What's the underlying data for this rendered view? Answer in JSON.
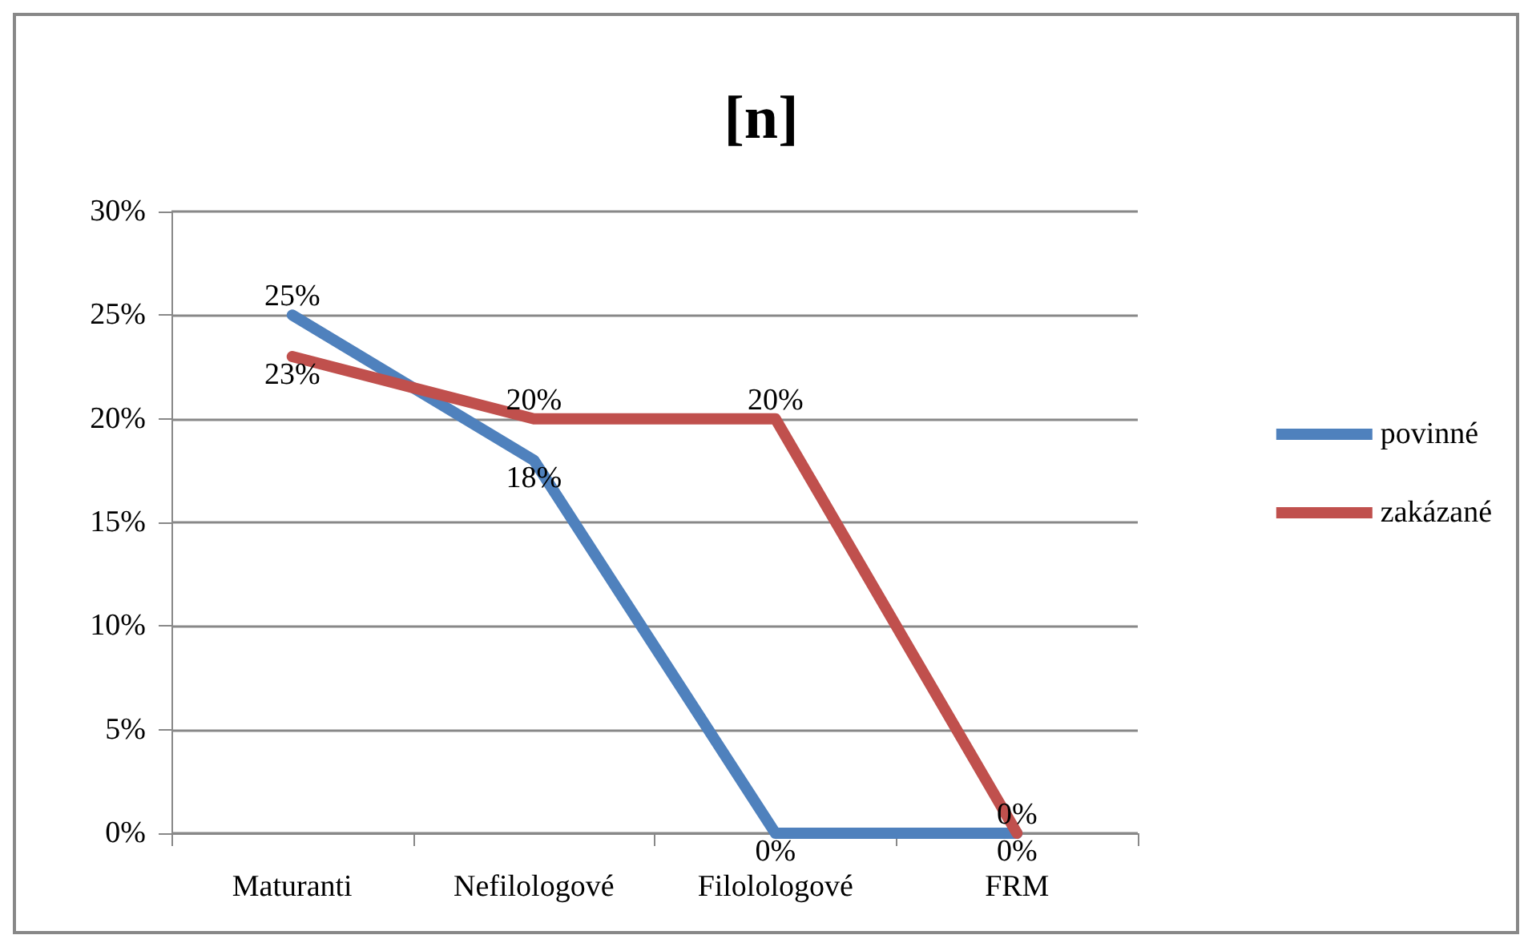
{
  "chart_data": {
    "type": "line",
    "title": "[n]",
    "categories": [
      "Maturanti",
      "Nefilologové",
      "Filolologové",
      "FRM"
    ],
    "series": [
      {
        "name": "povinné",
        "color": "#4f81bd",
        "values": [
          25,
          18,
          0,
          0
        ],
        "value_labels": [
          "25%",
          "18%",
          "0%",
          "0%"
        ]
      },
      {
        "name": "zakázané",
        "color": "#c0504d",
        "values": [
          23,
          20,
          20,
          0
        ],
        "value_labels": [
          "23%",
          "20%",
          "20%",
          "0%"
        ]
      }
    ],
    "ylim": [
      0,
      30
    ],
    "yticks": [
      {
        "value": 0,
        "label": "0%"
      },
      {
        "value": 5,
        "label": "5%"
      },
      {
        "value": 10,
        "label": "10%"
      },
      {
        "value": 15,
        "label": "15%"
      },
      {
        "value": 20,
        "label": "20%"
      },
      {
        "value": 25,
        "label": "25%"
      },
      {
        "value": 30,
        "label": "30%"
      }
    ],
    "grid": "y",
    "legend": "right",
    "marker": "none",
    "line_style": "solid"
  }
}
